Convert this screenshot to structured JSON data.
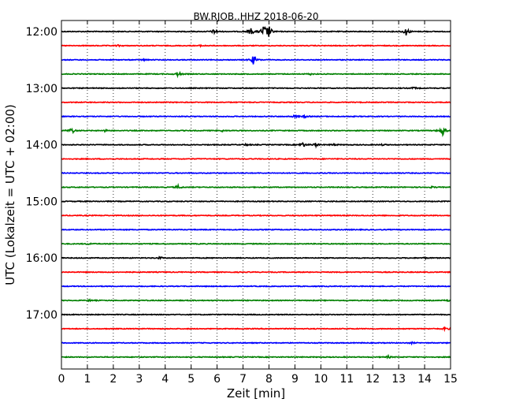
{
  "chart_data": {
    "type": "line",
    "title": "BW.RJOB..HHZ 2018-06-20",
    "xlabel": "Zeit  [min]",
    "ylabel": "UTC (Lokalzeit = UTC + 02:00)",
    "xlim": [
      0,
      15
    ],
    "x_ticks": [
      0,
      1,
      2,
      3,
      4,
      5,
      6,
      7,
      8,
      9,
      10,
      11,
      12,
      13,
      14,
      15
    ],
    "x_tick_labels": [
      "0",
      "1",
      "2",
      "3",
      "4",
      "5",
      "6",
      "7",
      "8",
      "9",
      "10",
      "11",
      "12",
      "13",
      "14",
      "15"
    ],
    "grid": "vertical-dotted",
    "trace_interval_min": 15,
    "y_tick_labels": [
      "12:00",
      "13:00",
      "14:00",
      "15:00",
      "16:00",
      "17:00"
    ],
    "trace_colors": [
      "#000000",
      "#ff0000",
      "#0000ff",
      "#008000"
    ],
    "series": [
      {
        "start": "12:00",
        "events": [
          {
            "t": 5.9,
            "amp": 0.35
          },
          {
            "t": 7.3,
            "amp": 0.5
          },
          {
            "t": 7.8,
            "amp": 0.9
          },
          {
            "t": 8.0,
            "amp": 0.8
          },
          {
            "t": 13.3,
            "amp": 0.6
          }
        ]
      },
      {
        "start": "12:15",
        "events": [
          {
            "t": 2.2,
            "amp": 0.1
          },
          {
            "t": 5.4,
            "amp": 0.1
          }
        ]
      },
      {
        "start": "12:30",
        "events": [
          {
            "t": 3.2,
            "amp": 0.1
          },
          {
            "t": 7.4,
            "amp": 0.65
          }
        ]
      },
      {
        "start": "12:45",
        "events": [
          {
            "t": 4.5,
            "amp": 0.35
          },
          {
            "t": 9.6,
            "amp": 0.1
          }
        ]
      },
      {
        "start": "13:00",
        "events": [
          {
            "t": 13.6,
            "amp": 0.12
          }
        ]
      },
      {
        "start": "13:15",
        "events": []
      },
      {
        "start": "13:30",
        "events": [
          {
            "t": 9.0,
            "amp": 0.2
          },
          {
            "t": 9.4,
            "amp": 0.15
          }
        ]
      },
      {
        "start": "13:45",
        "events": [
          {
            "t": 0.4,
            "amp": 0.45
          },
          {
            "t": 1.7,
            "amp": 0.15
          },
          {
            "t": 6.2,
            "amp": 0.12
          },
          {
            "t": 14.7,
            "amp": 0.7
          }
        ]
      },
      {
        "start": "14:00",
        "events": [
          {
            "t": 7.1,
            "amp": 0.12
          },
          {
            "t": 9.3,
            "amp": 0.35
          },
          {
            "t": 9.8,
            "amp": 0.25
          },
          {
            "t": 10.5,
            "amp": 0.12
          },
          {
            "t": 12.4,
            "amp": 0.1
          }
        ]
      },
      {
        "start": "14:15",
        "events": []
      },
      {
        "start": "14:30",
        "events": []
      },
      {
        "start": "14:45",
        "events": [
          {
            "t": 4.5,
            "amp": 0.25
          },
          {
            "t": 14.3,
            "amp": 0.1
          }
        ]
      },
      {
        "start": "15:00",
        "events": []
      },
      {
        "start": "15:15",
        "events": []
      },
      {
        "start": "15:30",
        "events": []
      },
      {
        "start": "15:45",
        "events": [
          {
            "t": 1.1,
            "amp": 0.1
          }
        ]
      },
      {
        "start": "16:00",
        "events": [
          {
            "t": 3.8,
            "amp": 0.15
          },
          {
            "t": 14.0,
            "amp": 0.1
          }
        ]
      },
      {
        "start": "16:15",
        "events": []
      },
      {
        "start": "16:30",
        "events": []
      },
      {
        "start": "16:45",
        "events": [
          {
            "t": 1.1,
            "amp": 0.1
          },
          {
            "t": 14.9,
            "amp": 0.12
          }
        ]
      },
      {
        "start": "17:00",
        "events": []
      },
      {
        "start": "17:15",
        "events": [
          {
            "t": 14.8,
            "amp": 0.2
          }
        ]
      },
      {
        "start": "17:30",
        "events": [
          {
            "t": 13.5,
            "amp": 0.1
          }
        ]
      },
      {
        "start": "17:45",
        "events": [
          {
            "t": 12.6,
            "amp": 0.15
          }
        ]
      }
    ]
  }
}
